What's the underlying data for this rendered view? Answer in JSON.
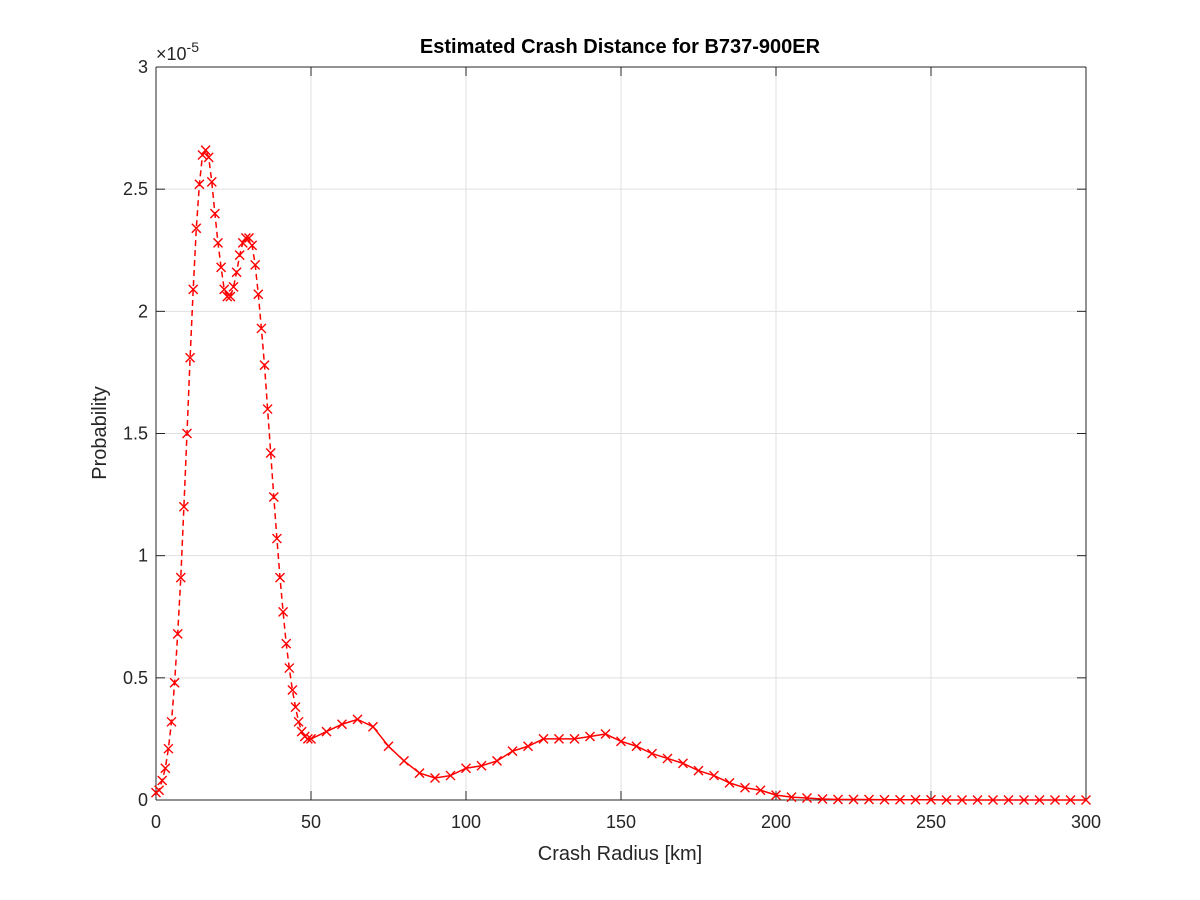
{
  "chart_data": {
    "type": "line",
    "title": "Estimated Crash Distance for B737-900ER",
    "xlabel": "Crash Radius [km]",
    "ylabel": "Probability",
    "y_exponent_label": "×10",
    "y_exponent_power": "-5",
    "xlim": [
      0,
      300
    ],
    "ylim": [
      0,
      3
    ],
    "y_unit_scale": 1e-05,
    "xticks": [
      0,
      50,
      100,
      150,
      200,
      250,
      300
    ],
    "xtick_labels": [
      "0",
      "50",
      "100",
      "150",
      "200",
      "250",
      "300"
    ],
    "yticks": [
      0,
      0.5,
      1,
      1.5,
      2,
      2.5,
      3
    ],
    "ytick_labels": [
      "0",
      "0.5",
      "1",
      "1.5",
      "2",
      "2.5",
      "3"
    ],
    "grid": true,
    "series_color": "#ff0000",
    "marker": "x",
    "line_style": "dashed then solid after 50 km",
    "series": [
      {
        "x": [
          0,
          1,
          2,
          3,
          4,
          5,
          6,
          7,
          8,
          9,
          10,
          11,
          12,
          13,
          14,
          15,
          16,
          17,
          18,
          19,
          20,
          21,
          22,
          23,
          24,
          25,
          26,
          27,
          28,
          29,
          30,
          31,
          32,
          33,
          34,
          35,
          36,
          37,
          38,
          39,
          40,
          41,
          42,
          43,
          44,
          45,
          46,
          47,
          48,
          49,
          50,
          55,
          60,
          65,
          70,
          75,
          80,
          85,
          90,
          95,
          100,
          105,
          110,
          115,
          120,
          125,
          130,
          135,
          140,
          145,
          150,
          155,
          160,
          165,
          170,
          175,
          180,
          185,
          190,
          195,
          200,
          205,
          210,
          215,
          220,
          225,
          230,
          235,
          240,
          245,
          250,
          255,
          260,
          265,
          270,
          275,
          280,
          285,
          290,
          295,
          300
        ],
        "y": [
          0.03,
          0.04,
          0.08,
          0.13,
          0.21,
          0.32,
          0.48,
          0.68,
          0.91,
          1.2,
          1.5,
          1.81,
          2.09,
          2.34,
          2.52,
          2.64,
          2.66,
          2.63,
          2.53,
          2.4,
          2.28,
          2.18,
          2.09,
          2.06,
          2.06,
          2.1,
          2.16,
          2.23,
          2.28,
          2.3,
          2.3,
          2.27,
          2.19,
          2.07,
          1.93,
          1.78,
          1.6,
          1.42,
          1.24,
          1.07,
          0.91,
          0.77,
          0.64,
          0.54,
          0.45,
          0.38,
          0.32,
          0.28,
          0.26,
          0.25,
          0.25,
          0.28,
          0.31,
          0.33,
          0.3,
          0.22,
          0.16,
          0.11,
          0.09,
          0.1,
          0.13,
          0.14,
          0.16,
          0.2,
          0.22,
          0.25,
          0.25,
          0.25,
          0.26,
          0.27,
          0.24,
          0.22,
          0.19,
          0.17,
          0.15,
          0.12,
          0.1,
          0.07,
          0.05,
          0.04,
          0.02,
          0.012,
          0.008,
          0.004,
          0.002,
          0.002,
          0.002,
          0.001,
          0.001,
          0.001,
          0.001,
          0.0,
          0.0,
          0.0,
          0.0,
          0.0,
          0.0,
          0.0,
          0.0,
          0.0,
          0.0
        ]
      }
    ]
  }
}
